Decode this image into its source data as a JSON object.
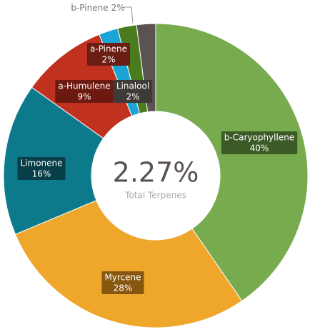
{
  "chart_data": {
    "type": "donut",
    "center_value": "2.27%",
    "center_label": "Total Terpenes",
    "categories": [
      "b-Caryophyllene",
      "Myrcene",
      "Limonene",
      "a-Humulene",
      "a-Pinene",
      "Linalool",
      "b-Pinene"
    ],
    "values": [
      40,
      28,
      16,
      9,
      2,
      2,
      2
    ],
    "value_labels": [
      "40%",
      "28%",
      "16%",
      "9%",
      "2%",
      "2%",
      "2%"
    ],
    "colors": [
      "#77ab4e",
      "#eea62b",
      "#0c7a8b",
      "#c1311f",
      "#1ba5d6",
      "#4b7b1f",
      "#5b5352"
    ]
  }
}
